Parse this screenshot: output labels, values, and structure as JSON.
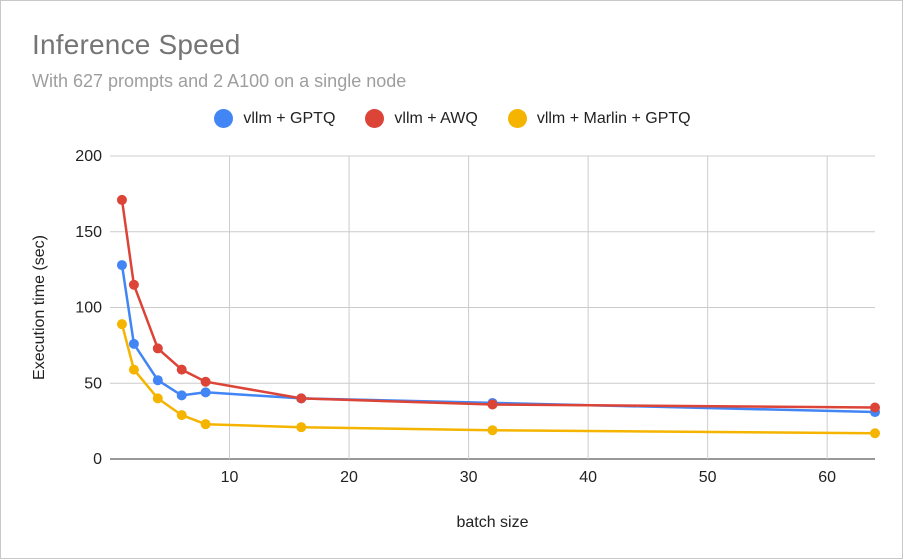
{
  "chart_data": {
    "type": "line",
    "title": "Inference Speed",
    "subtitle": "With 627 prompts and 2 A100 on a single node",
    "xlabel": "batch size",
    "ylabel": "Execution time (sec)",
    "xlim": [
      0,
      64
    ],
    "ylim": [
      0,
      200
    ],
    "x_ticks": [
      10,
      20,
      30,
      40,
      50,
      60
    ],
    "y_ticks": [
      0,
      50,
      100,
      150,
      200
    ],
    "legend_position": "top",
    "grid": true,
    "x": [
      1,
      2,
      4,
      6,
      8,
      16,
      32,
      64
    ],
    "series": [
      {
        "name": "vllm + GPTQ",
        "color": "#4285f4",
        "values": [
          128,
          76,
          52,
          42,
          44,
          40,
          37,
          31
        ]
      },
      {
        "name": "vllm + AWQ",
        "color": "#db4437",
        "values": [
          171,
          115,
          73,
          59,
          51,
          40,
          36,
          34
        ]
      },
      {
        "name": "vllm + Marlin + GPTQ",
        "color": "#f4b400",
        "values": [
          89,
          59,
          40,
          29,
          23,
          21,
          19,
          17
        ]
      }
    ]
  }
}
